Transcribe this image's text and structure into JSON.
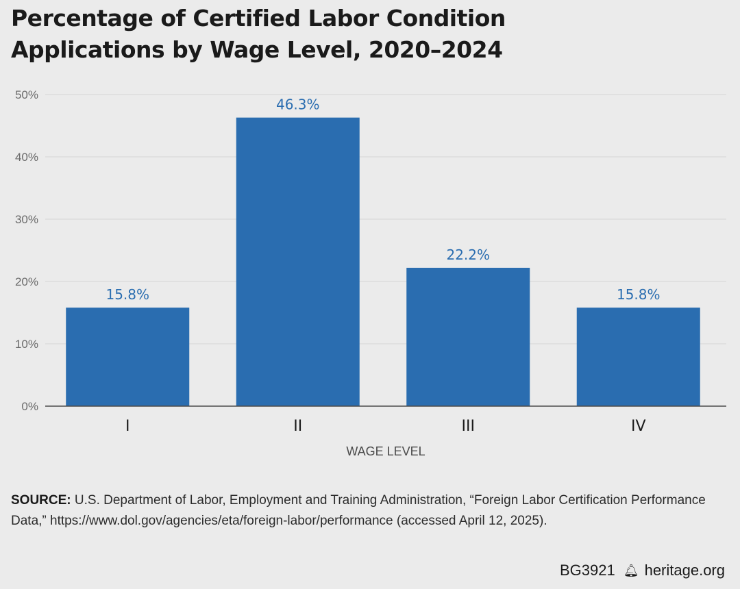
{
  "chart_data": {
    "type": "bar",
    "title_lines": [
      "Percentage of Certified Labor Condition",
      "Applications by Wage Level, 2020–2024"
    ],
    "xlabel": "WAGE LEVEL",
    "ylabel": "",
    "categories": [
      "I",
      "II",
      "III",
      "IV"
    ],
    "values": [
      15.8,
      46.3,
      22.2,
      15.8
    ],
    "value_labels": [
      "15.8%",
      "46.3%",
      "22.2%",
      "15.8%"
    ],
    "ylim": [
      0,
      50
    ],
    "y_ticks": [
      0,
      10,
      20,
      30,
      40,
      50
    ],
    "y_tick_labels": [
      "0%",
      "10%",
      "20%",
      "30%",
      "40%",
      "50%"
    ],
    "grid": true,
    "legend": "none",
    "bar_color": "#2a6db0",
    "label_color": "#2a6db0"
  },
  "source": {
    "label": "SOURCE:",
    "text": " U.S. Department of Labor, Employment and Training Administration, “Foreign Labor Certification Performance Data,” https://www.dol.gov/agencies/eta/foreign-labor/performance (accessed April 12, 2025)."
  },
  "footer": {
    "code": "BG3921",
    "icon": "liberty-bell-icon",
    "site": "heritage.org"
  }
}
